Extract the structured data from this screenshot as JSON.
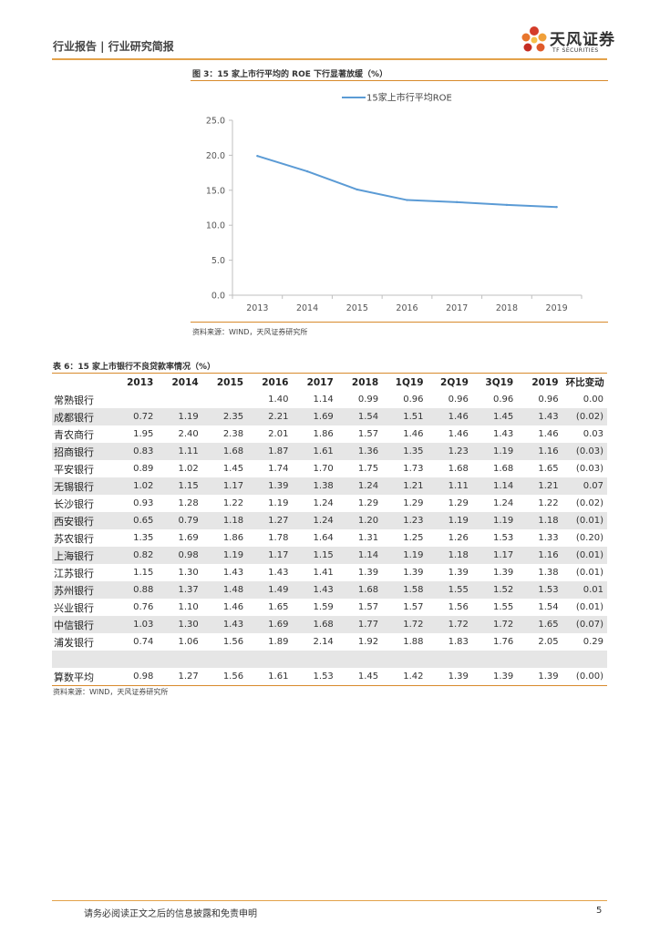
{
  "header": {
    "title": "行业报告 | 行业研究简报"
  },
  "logo": {
    "name_cn": "天风证券",
    "name_en": "TF SECURITIES"
  },
  "figure": {
    "caption": "图 3：15 家上市行平均的 ROE 下行显著放缓（%）",
    "source": "资料来源：WIND，天风证券研究所"
  },
  "chart_data": {
    "type": "line",
    "title": "",
    "categories": [
      "2013",
      "2014",
      "2015",
      "2016",
      "2017",
      "2018",
      "2019"
    ],
    "series": [
      {
        "name": "15家上市行平均ROE",
        "values": [
          19.9,
          17.7,
          15.1,
          13.6,
          13.3,
          12.9,
          12.6
        ]
      }
    ],
    "ylim": [
      0,
      25
    ],
    "yticks": [
      "0.0",
      "5.0",
      "10.0",
      "15.0",
      "20.0",
      "25.0"
    ],
    "legend": "top",
    "grid": false,
    "line_color": "#5b9bd5"
  },
  "table": {
    "caption": "表 6：15 家上市银行不良贷款率情况（%）",
    "columns": [
      "",
      "2013",
      "2014",
      "2015",
      "2016",
      "2017",
      "2018",
      "1Q19",
      "2Q19",
      "3Q19",
      "2019",
      "环比变动"
    ],
    "rows": [
      [
        "常熟银行",
        "",
        "",
        "",
        "1.40",
        "1.14",
        "0.99",
        "0.96",
        "0.96",
        "0.96",
        "0.96",
        "0.00"
      ],
      [
        "成都银行",
        "0.72",
        "1.19",
        "2.35",
        "2.21",
        "1.69",
        "1.54",
        "1.51",
        "1.46",
        "1.45",
        "1.43",
        "(0.02)"
      ],
      [
        "青农商行",
        "1.95",
        "2.40",
        "2.38",
        "2.01",
        "1.86",
        "1.57",
        "1.46",
        "1.46",
        "1.43",
        "1.46",
        "0.03"
      ],
      [
        "招商银行",
        "0.83",
        "1.11",
        "1.68",
        "1.87",
        "1.61",
        "1.36",
        "1.35",
        "1.23",
        "1.19",
        "1.16",
        "(0.03)"
      ],
      [
        "平安银行",
        "0.89",
        "1.02",
        "1.45",
        "1.74",
        "1.70",
        "1.75",
        "1.73",
        "1.68",
        "1.68",
        "1.65",
        "(0.03)"
      ],
      [
        "无锡银行",
        "1.02",
        "1.15",
        "1.17",
        "1.39",
        "1.38",
        "1.24",
        "1.21",
        "1.11",
        "1.14",
        "1.21",
        "0.07"
      ],
      [
        "长沙银行",
        "0.93",
        "1.28",
        "1.22",
        "1.19",
        "1.24",
        "1.29",
        "1.29",
        "1.29",
        "1.24",
        "1.22",
        "(0.02)"
      ],
      [
        "西安银行",
        "0.65",
        "0.79",
        "1.18",
        "1.27",
        "1.24",
        "1.20",
        "1.23",
        "1.19",
        "1.19",
        "1.18",
        "(0.01)"
      ],
      [
        "苏农银行",
        "1.35",
        "1.69",
        "1.86",
        "1.78",
        "1.64",
        "1.31",
        "1.25",
        "1.26",
        "1.53",
        "1.33",
        "(0.20)"
      ],
      [
        "上海银行",
        "0.82",
        "0.98",
        "1.19",
        "1.17",
        "1.15",
        "1.14",
        "1.19",
        "1.18",
        "1.17",
        "1.16",
        "(0.01)"
      ],
      [
        "江苏银行",
        "1.15",
        "1.30",
        "1.43",
        "1.43",
        "1.41",
        "1.39",
        "1.39",
        "1.39",
        "1.39",
        "1.38",
        "(0.01)"
      ],
      [
        "苏州银行",
        "0.88",
        "1.37",
        "1.48",
        "1.49",
        "1.43",
        "1.68",
        "1.58",
        "1.55",
        "1.52",
        "1.53",
        "0.01"
      ],
      [
        "兴业银行",
        "0.76",
        "1.10",
        "1.46",
        "1.65",
        "1.59",
        "1.57",
        "1.57",
        "1.56",
        "1.55",
        "1.54",
        "(0.01)"
      ],
      [
        "中信银行",
        "1.03",
        "1.30",
        "1.43",
        "1.69",
        "1.68",
        "1.77",
        "1.72",
        "1.72",
        "1.72",
        "1.65",
        "(0.07)"
      ],
      [
        "浦发银行",
        "0.74",
        "1.06",
        "1.56",
        "1.89",
        "2.14",
        "1.92",
        "1.88",
        "1.83",
        "1.76",
        "2.05",
        "0.29"
      ],
      [
        "",
        "",
        "",
        "",
        "",
        "",
        "",
        "",
        "",
        "",
        "",
        ""
      ],
      [
        "算数平均",
        "0.98",
        "1.27",
        "1.56",
        "1.61",
        "1.53",
        "1.45",
        "1.42",
        "1.39",
        "1.39",
        "1.39",
        "(0.00)"
      ]
    ],
    "source": "资料来源：WIND，天风证券研究所"
  },
  "footer": {
    "disclaimer": "请务必阅读正文之后的信息披露和免责申明",
    "page": "5"
  }
}
